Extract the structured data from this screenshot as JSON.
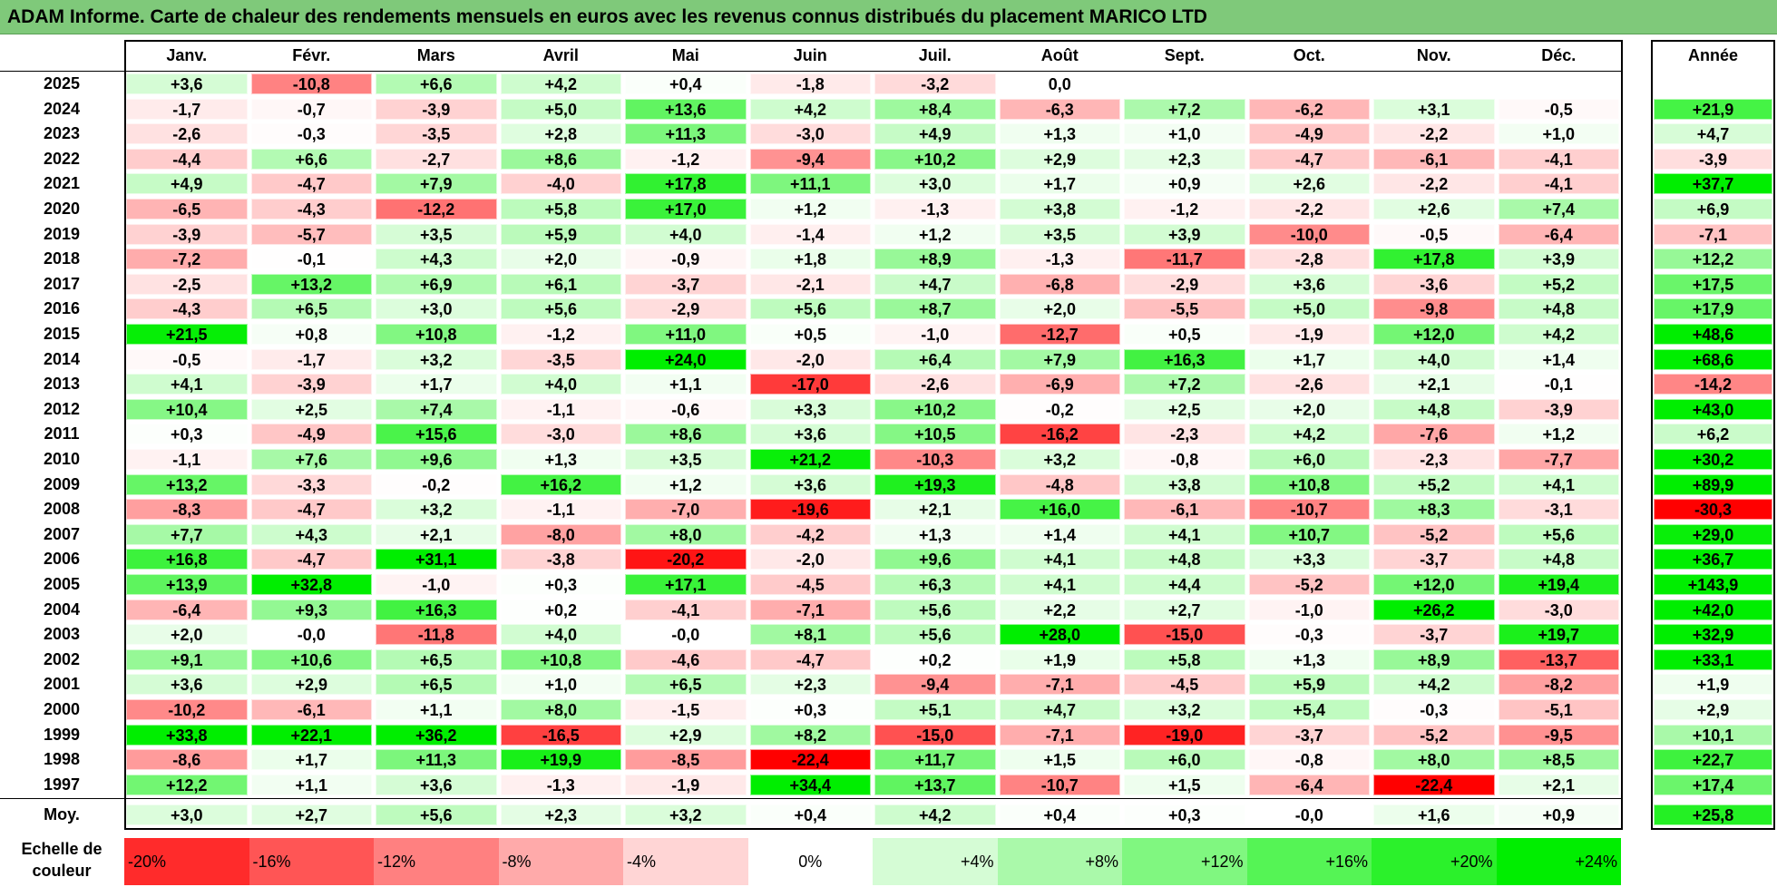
{
  "title": "ADAM Informe. Carte de chaleur des rendements mensuels en euros avec les revenus connus distribués du placement MARICO LTD",
  "chart_data": {
    "type": "heatmap",
    "columns": [
      "Janv.",
      "Févr.",
      "Mars",
      "Avril",
      "Mai",
      "Juin",
      "Juil.",
      "Août",
      "Sept.",
      "Oct.",
      "Nov.",
      "Déc."
    ],
    "year_header": "Année",
    "rows": [
      {
        "year": "2025",
        "values": [
          "+3,6",
          "-10,8",
          "+6,6",
          "+4,2",
          "+0,4",
          "-1,8",
          "-3,2",
          "0,0",
          "",
          "",
          "",
          ""
        ],
        "annual": ""
      },
      {
        "year": "2024",
        "values": [
          "-1,7",
          "-0,7",
          "-3,9",
          "+5,0",
          "+13,6",
          "+4,2",
          "+8,4",
          "-6,3",
          "+7,2",
          "-6,2",
          "+3,1",
          "-0,5"
        ],
        "annual": "+21,9"
      },
      {
        "year": "2023",
        "values": [
          "-2,6",
          "-0,3",
          "-3,5",
          "+2,8",
          "+11,3",
          "-3,0",
          "+4,9",
          "+1,3",
          "+1,0",
          "-4,9",
          "-2,2",
          "+1,0"
        ],
        "annual": "+4,7"
      },
      {
        "year": "2022",
        "values": [
          "-4,4",
          "+6,6",
          "-2,7",
          "+8,6",
          "-1,2",
          "-9,4",
          "+10,2",
          "+2,9",
          "+2,3",
          "-4,7",
          "-6,1",
          "-4,1"
        ],
        "annual": "-3,9"
      },
      {
        "year": "2021",
        "values": [
          "+4,9",
          "-4,7",
          "+7,9",
          "-4,0",
          "+17,8",
          "+11,1",
          "+3,0",
          "+1,7",
          "+0,9",
          "+2,6",
          "-2,2",
          "-4,1"
        ],
        "annual": "+37,7"
      },
      {
        "year": "2020",
        "values": [
          "-6,5",
          "-4,3",
          "-12,2",
          "+5,8",
          "+17,0",
          "+1,2",
          "-1,3",
          "+3,8",
          "-1,2",
          "-2,2",
          "+2,6",
          "+7,4"
        ],
        "annual": "+6,9"
      },
      {
        "year": "2019",
        "values": [
          "-3,9",
          "-5,7",
          "+3,5",
          "+5,9",
          "+4,0",
          "-1,4",
          "+1,2",
          "+3,5",
          "+3,9",
          "-10,0",
          "-0,5",
          "-6,4"
        ],
        "annual": "-7,1"
      },
      {
        "year": "2018",
        "values": [
          "-7,2",
          "-0,1",
          "+4,3",
          "+2,0",
          "-0,9",
          "+1,8",
          "+8,9",
          "-1,3",
          "-11,7",
          "-2,8",
          "+17,8",
          "+3,9"
        ],
        "annual": "+12,2"
      },
      {
        "year": "2017",
        "values": [
          "-2,5",
          "+13,2",
          "+6,9",
          "+6,1",
          "-3,7",
          "-2,1",
          "+4,7",
          "-6,8",
          "-2,9",
          "+3,6",
          "-3,6",
          "+5,2"
        ],
        "annual": "+17,5"
      },
      {
        "year": "2016",
        "values": [
          "-4,3",
          "+6,5",
          "+3,0",
          "+5,6",
          "-2,9",
          "+5,6",
          "+8,7",
          "+2,0",
          "-5,5",
          "+5,0",
          "-9,8",
          "+4,8"
        ],
        "annual": "+17,9"
      },
      {
        "year": "2015",
        "values": [
          "+21,5",
          "+0,8",
          "+10,8",
          "-1,2",
          "+11,0",
          "+0,5",
          "-1,0",
          "-12,7",
          "+0,5",
          "-1,9",
          "+12,0",
          "+4,2"
        ],
        "annual": "+48,6"
      },
      {
        "year": "2014",
        "values": [
          "-0,5",
          "-1,7",
          "+3,2",
          "-3,5",
          "+24,0",
          "-2,0",
          "+6,4",
          "+7,9",
          "+16,3",
          "+1,7",
          "+4,0",
          "+1,4"
        ],
        "annual": "+68,6"
      },
      {
        "year": "2013",
        "values": [
          "+4,1",
          "-3,9",
          "+1,7",
          "+4,0",
          "+1,1",
          "-17,0",
          "-2,6",
          "-6,9",
          "+7,2",
          "-2,6",
          "+2,1",
          "-0,1"
        ],
        "annual": "-14,2"
      },
      {
        "year": "2012",
        "values": [
          "+10,4",
          "+2,5",
          "+7,4",
          "-1,1",
          "-0,6",
          "+3,3",
          "+10,2",
          "-0,2",
          "+2,5",
          "+2,0",
          "+4,8",
          "-3,9"
        ],
        "annual": "+43,0"
      },
      {
        "year": "2011",
        "values": [
          "+0,3",
          "-4,9",
          "+15,6",
          "-3,0",
          "+8,6",
          "+3,6",
          "+10,5",
          "-16,2",
          "-2,3",
          "+4,2",
          "-7,6",
          "+1,2"
        ],
        "annual": "+6,2"
      },
      {
        "year": "2010",
        "values": [
          "-1,1",
          "+7,6",
          "+9,6",
          "+1,3",
          "+3,5",
          "+21,2",
          "-10,3",
          "+3,2",
          "-0,8",
          "+6,0",
          "-2,3",
          "-7,7"
        ],
        "annual": "+30,2"
      },
      {
        "year": "2009",
        "values": [
          "+13,2",
          "-3,3",
          "-0,2",
          "+16,2",
          "+1,2",
          "+3,6",
          "+19,3",
          "-4,8",
          "+3,8",
          "+10,8",
          "+5,2",
          "+4,1"
        ],
        "annual": "+89,9"
      },
      {
        "year": "2008",
        "values": [
          "-8,3",
          "-4,7",
          "+3,2",
          "-1,1",
          "-7,0",
          "-19,6",
          "+2,1",
          "+16,0",
          "-6,1",
          "-10,7",
          "+8,3",
          "-3,1"
        ],
        "annual": "-30,3"
      },
      {
        "year": "2007",
        "values": [
          "+7,7",
          "+4,3",
          "+2,1",
          "-8,0",
          "+8,0",
          "-4,2",
          "+1,3",
          "+1,4",
          "+4,1",
          "+10,7",
          "-5,2",
          "+5,6"
        ],
        "annual": "+29,0"
      },
      {
        "year": "2006",
        "values": [
          "+16,8",
          "-4,7",
          "+31,1",
          "-3,8",
          "-20,2",
          "-2,0",
          "+9,6",
          "+4,1",
          "+4,8",
          "+3,3",
          "-3,7",
          "+4,8"
        ],
        "annual": "+36,7"
      },
      {
        "year": "2005",
        "values": [
          "+13,9",
          "+32,8",
          "-1,0",
          "+0,3",
          "+17,1",
          "-4,5",
          "+6,3",
          "+4,1",
          "+4,4",
          "-5,2",
          "+12,0",
          "+19,4"
        ],
        "annual": "+143,9"
      },
      {
        "year": "2004",
        "values": [
          "-6,4",
          "+9,3",
          "+16,3",
          "+0,2",
          "-4,1",
          "-7,1",
          "+5,6",
          "+2,2",
          "+2,7",
          "-1,0",
          "+26,2",
          "-3,0"
        ],
        "annual": "+42,0"
      },
      {
        "year": "2003",
        "values": [
          "+2,0",
          "-0,0",
          "-11,8",
          "+4,0",
          "-0,0",
          "+8,1",
          "+5,6",
          "+28,0",
          "-15,0",
          "-0,3",
          "-3,7",
          "+19,7"
        ],
        "annual": "+32,9"
      },
      {
        "year": "2002",
        "values": [
          "+9,1",
          "+10,6",
          "+6,5",
          "+10,8",
          "-4,6",
          "-4,7",
          "+0,2",
          "+1,9",
          "+5,8",
          "+1,3",
          "+8,9",
          "-13,7"
        ],
        "annual": "+33,1"
      },
      {
        "year": "2001",
        "values": [
          "+3,6",
          "+2,9",
          "+6,5",
          "+1,0",
          "+6,5",
          "+2,3",
          "-9,4",
          "-7,1",
          "-4,5",
          "+5,9",
          "+4,2",
          "-8,2"
        ],
        "annual": "+1,9"
      },
      {
        "year": "2000",
        "values": [
          "-10,2",
          "-6,1",
          "+1,1",
          "+8,0",
          "-1,5",
          "+0,3",
          "+5,1",
          "+4,7",
          "+3,2",
          "+5,4",
          "-0,3",
          "-5,1"
        ],
        "annual": "+2,9"
      },
      {
        "year": "1999",
        "values": [
          "+33,8",
          "+22,1",
          "+36,2",
          "-16,5",
          "+2,9",
          "+8,2",
          "-15,0",
          "-7,1",
          "-19,0",
          "-3,7",
          "-5,2",
          "-9,5"
        ],
        "annual": "+10,1"
      },
      {
        "year": "1998",
        "values": [
          "-8,6",
          "+1,7",
          "+11,3",
          "+19,9",
          "-8,5",
          "-22,4",
          "+11,7",
          "+1,5",
          "+6,0",
          "-0,8",
          "+8,0",
          "+8,5"
        ],
        "annual": "+22,7"
      },
      {
        "year": "1997",
        "values": [
          "+12,2",
          "+1,1",
          "+3,6",
          "-1,3",
          "-1,9",
          "+34,4",
          "+13,7",
          "-10,7",
          "+1,5",
          "-6,4",
          "-22,4",
          "+2,1"
        ],
        "annual": "+17,4"
      }
    ],
    "average": {
      "label": "Moy.",
      "values": [
        "+3,0",
        "+2,7",
        "+5,6",
        "+2,3",
        "+3,2",
        "+0,4",
        "+4,2",
        "+0,4",
        "+0,3",
        "-0,0",
        "+1,6",
        "+0,9"
      ],
      "annual": "+25,8"
    },
    "color_scale": {
      "label": "Echelle de couleur",
      "steps": [
        {
          "label": "-20%",
          "value": -20
        },
        {
          "label": "-16%",
          "value": -16
        },
        {
          "label": "-12%",
          "value": -12
        },
        {
          "label": "-8%",
          "value": -8
        },
        {
          "label": "-4%",
          "value": -4
        },
        {
          "label": "0%",
          "value": 0
        },
        {
          "label": "+4%",
          "value": 4
        },
        {
          "label": "+8%",
          "value": 8
        },
        {
          "label": "+12%",
          "value": 12
        },
        {
          "label": "+16%",
          "value": 16
        },
        {
          "label": "+20%",
          "value": 20
        },
        {
          "label": "+24%",
          "value": 24
        }
      ]
    },
    "colors": {
      "negative_max": "#ff0000",
      "neutral": "#ffffff",
      "positive_max": "#00ee00"
    }
  }
}
